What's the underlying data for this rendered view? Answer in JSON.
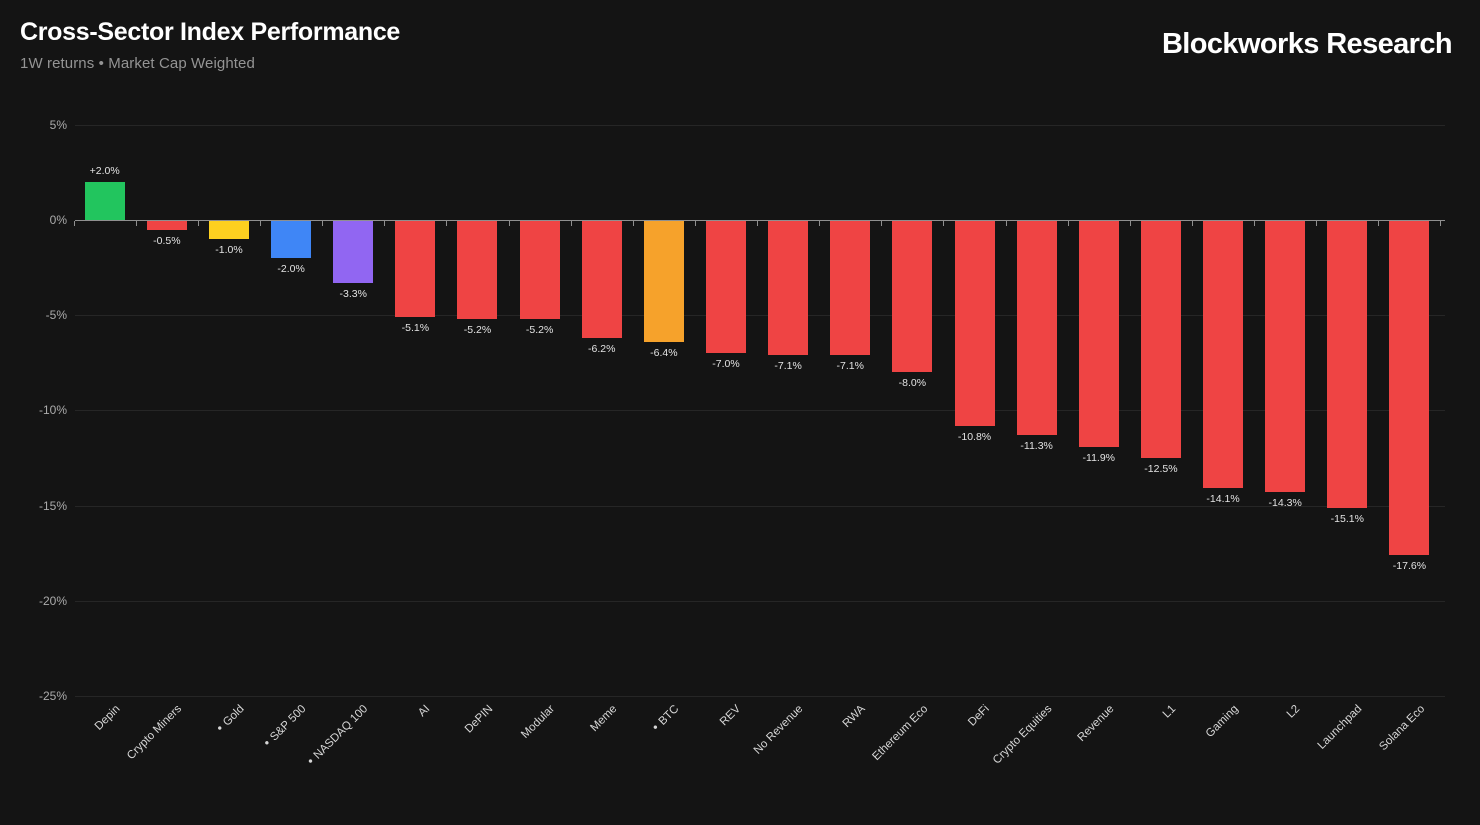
{
  "header": {
    "title": "Cross-Sector Index Performance",
    "subtitle": "1W returns • Market Cap Weighted",
    "brand": "Blockworks Research"
  },
  "chart_data": {
    "type": "bar",
    "title": "Cross-Sector Index Performance",
    "subtitle": "1W returns • Market Cap Weighted",
    "xlabel": "",
    "ylabel": "",
    "grid": true,
    "legend": false,
    "ylim": [
      -25,
      5
    ],
    "ytick_values": [
      5,
      0,
      -5,
      -10,
      -15,
      -20,
      -25
    ],
    "ytick_labels": [
      "5%",
      "0%",
      "-5%",
      "-10%",
      "-15%",
      "-20%",
      "-25%"
    ],
    "categories": [
      "Depin",
      "Crypto Miners",
      "Gold",
      "S&P 500",
      "NASDAQ 100",
      "AI",
      "DePIN",
      "Modular",
      "Meme",
      "BTC",
      "REV",
      "No Revenue",
      "RWA",
      "Ethereum Eco",
      "DeFi",
      "Crypto Equities",
      "Revenue",
      "L1",
      "Gaming",
      "L2",
      "Launchpad",
      "Solana Eco"
    ],
    "values": [
      2.0,
      -0.5,
      -1.0,
      -2.0,
      -3.3,
      -5.1,
      -5.2,
      -5.2,
      -6.2,
      -6.4,
      -7.0,
      -7.1,
      -7.1,
      -8.0,
      -10.8,
      -11.3,
      -11.9,
      -12.5,
      -14.1,
      -14.3,
      -15.1,
      -17.6
    ],
    "value_labels": [
      "+2.0%",
      "-0.5%",
      "-1.0%",
      "-2.0%",
      "-3.3%",
      "-5.1%",
      "-5.2%",
      "-5.2%",
      "-6.2%",
      "-6.4%",
      "-7.0%",
      "-7.1%",
      "-7.1%",
      "-8.0%",
      "-10.8%",
      "-11.3%",
      "-11.9%",
      "-12.5%",
      "-14.1%",
      "-14.3%",
      "-15.1%",
      "-17.6%"
    ],
    "bar_colors": [
      "#22c55e",
      "#ef4444",
      "#fdd020",
      "#3f86f6",
      "#9166f2",
      "#ef4444",
      "#ef4444",
      "#ef4444",
      "#ef4444",
      "#f6a22b",
      "#ef4444",
      "#ef4444",
      "#ef4444",
      "#ef4444",
      "#ef4444",
      "#ef4444",
      "#ef4444",
      "#ef4444",
      "#ef4444",
      "#ef4444",
      "#ef4444",
      "#ef4444"
    ],
    "dot_marked_categories": [
      "Gold",
      "S&P 500",
      "NASDAQ 100",
      "BTC"
    ],
    "colors": {
      "background": "#141414",
      "positive": "#22c55e",
      "negative": "#ef4444",
      "gold": "#fdd020",
      "sp500": "#3f86f6",
      "nasdaq100": "#9166f2",
      "btc": "#f6a22b",
      "axis": "#8f8f8f",
      "gridline": "#262626",
      "ytick_text": "#ababab",
      "xtick_text": "#d6d6d6",
      "value_text": "#e3e3e3"
    }
  }
}
